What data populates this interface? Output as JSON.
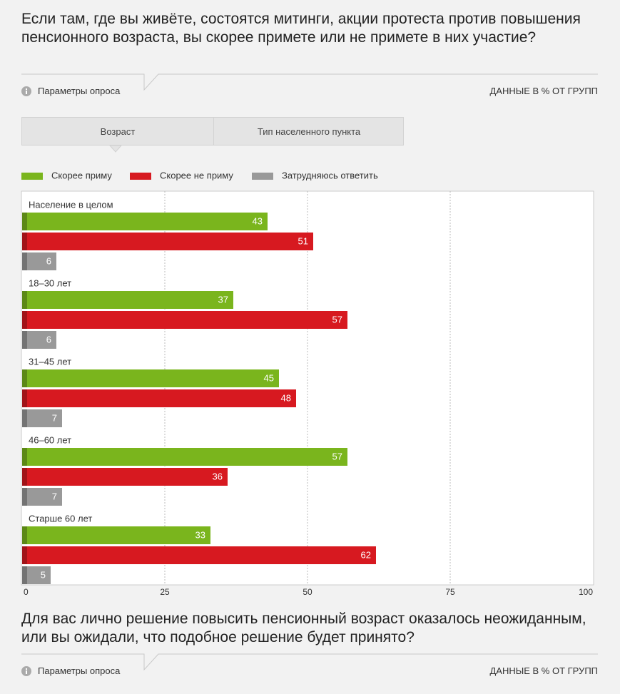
{
  "header": {
    "title": "Если там, где вы живёте, состоятся митинги, акции протеста против повышения пенсионного возраста, вы скорее примете или не примете в них участие?",
    "params": "Параметры опроса",
    "units": "ДАННЫЕ В % ОТ ГРУПП"
  },
  "tabs": [
    "Возраст",
    "Тип населенного пункта"
  ],
  "chart_data": {
    "type": "bar",
    "orientation": "horizontal",
    "categories": [
      "Население в целом",
      "18–30 лет",
      "31–45 лет",
      "46–60 лет",
      "Старше 60 лет"
    ],
    "series": [
      {
        "name": "Скорее приму",
        "color": "#7ab51d",
        "values": [
          43,
          37,
          45,
          57,
          33
        ]
      },
      {
        "name": "Скорее не приму",
        "color": "#d71920",
        "values": [
          51,
          57,
          48,
          36,
          62
        ]
      },
      {
        "name": "Затрудняюсь ответить",
        "color": "#999999",
        "values": [
          6,
          6,
          7,
          7,
          5
        ]
      }
    ],
    "xlim": [
      0,
      100
    ],
    "xticks": [
      0,
      25,
      50,
      75,
      100
    ],
    "grid": true
  },
  "footer": {
    "title": "Для вас лично решение повысить пенсионный возраст оказалось неожиданным, или вы ожидали, что подобное решение будет принято?",
    "params": "Параметры опроса",
    "units": "ДАННЫЕ В % ОТ ГРУПП"
  }
}
